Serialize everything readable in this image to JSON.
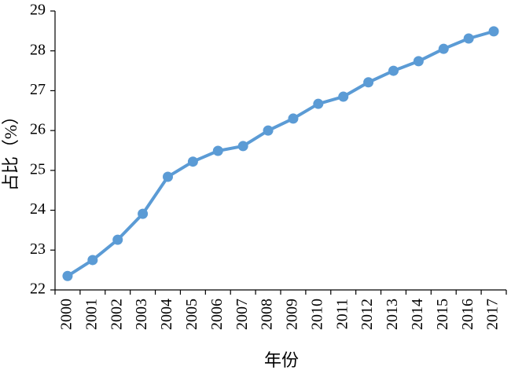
{
  "chart_data": {
    "type": "line",
    "categories": [
      "2000",
      "2001",
      "2002",
      "2003",
      "2004",
      "2005",
      "2006",
      "2007",
      "2008",
      "2009",
      "2010",
      "2011",
      "2012",
      "2013",
      "2014",
      "2015",
      "2016",
      "2017"
    ],
    "series": [
      {
        "values": [
          22.35,
          22.75,
          23.26,
          23.91,
          24.84,
          25.22,
          25.49,
          25.61,
          26.0,
          26.3,
          26.67,
          26.85,
          27.21,
          27.5,
          27.74,
          28.05,
          28.31,
          28.49
        ]
      }
    ],
    "xlabel": "年份",
    "ylabel": "占比（%）",
    "ylim": [
      22,
      29
    ],
    "yticks": [
      22,
      23,
      24,
      25,
      26,
      27,
      28,
      29
    ],
    "x_tick_label_orientation": "vertical",
    "markers": true,
    "grid": false,
    "legend": "none"
  },
  "colors": {
    "series": "#5b9bd5",
    "axis": "#000000"
  }
}
